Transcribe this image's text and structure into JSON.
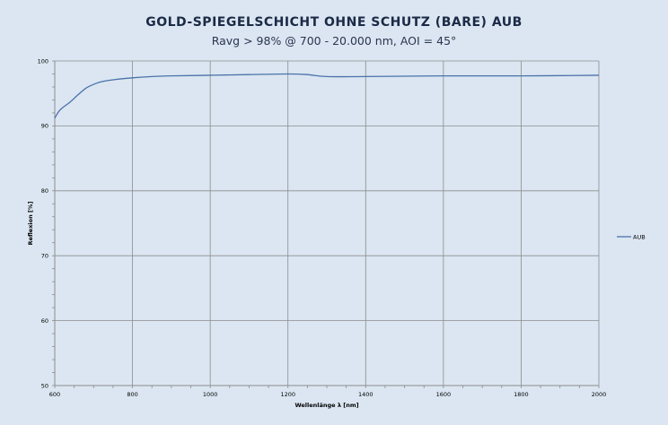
{
  "chart_data": {
    "type": "line",
    "title": "GOLD-SPIEGELSCHICHT OHNE SCHUTZ (BARE) AUB",
    "subtitle": "Ravg > 98% @ 700 - 20.000 nm, AOI = 45°",
    "xlabel": "Wellenlänge λ [nm]",
    "ylabel": "Reflexion [%]",
    "xlim": [
      600,
      2000
    ],
    "ylim": [
      50,
      100
    ],
    "xticks": [
      600,
      800,
      1000,
      1200,
      1400,
      1600,
      1800,
      2000
    ],
    "yticks": [
      50,
      60,
      70,
      80,
      90,
      100
    ],
    "grid": true,
    "legend_position": "right",
    "series": [
      {
        "name": "AUB",
        "color": "#4a72a8",
        "x": [
          600,
          610,
          620,
          640,
          660,
          680,
          700,
          720,
          750,
          800,
          850,
          900,
          1000,
          1100,
          1200,
          1250,
          1300,
          1400,
          1600,
          1800,
          2000
        ],
        "y": [
          91.2,
          92.2,
          92.8,
          93.7,
          94.8,
          95.8,
          96.4,
          96.8,
          97.1,
          97.4,
          97.6,
          97.7,
          97.8,
          97.9,
          98.0,
          97.9,
          97.6,
          97.6,
          97.7,
          97.7,
          97.8
        ]
      }
    ]
  }
}
